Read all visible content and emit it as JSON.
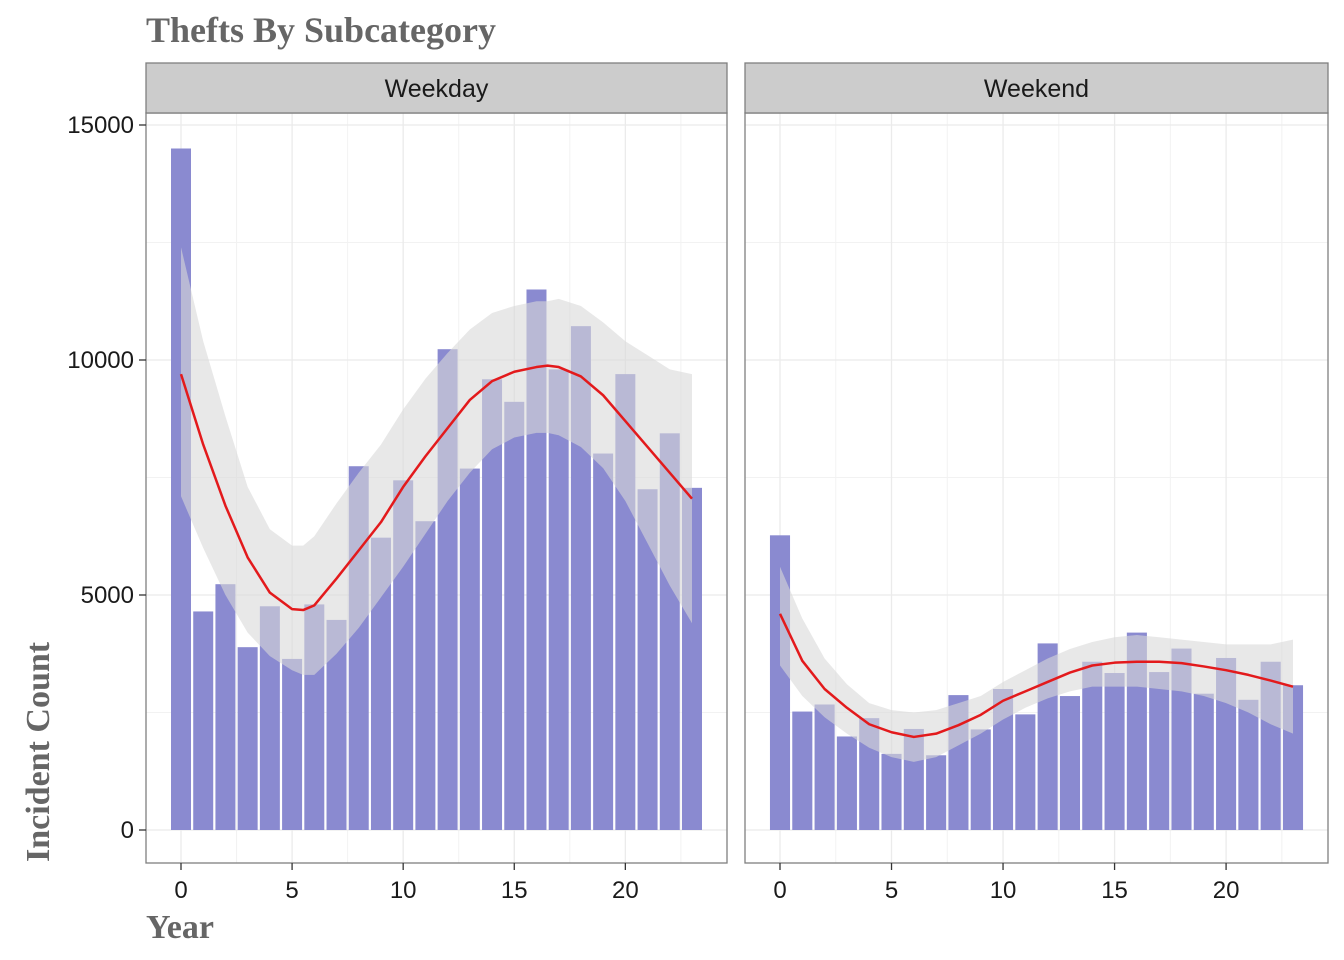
{
  "chart_data": {
    "type": "bar",
    "title": "Thefts By Subcategory",
    "xlabel": "Year",
    "ylabel": "Incident Count",
    "xlim": [
      -0.5,
      23.5
    ],
    "ylim": [
      0,
      15000
    ],
    "x_ticks": [
      0,
      5,
      10,
      15,
      20
    ],
    "y_ticks": [
      0,
      5000,
      10000,
      15000
    ],
    "grid": true,
    "colors": {
      "bar": "#8a8ad0",
      "smooth_line": "#e31a1c",
      "confidence_band": "#d9d9d9",
      "strip": "#cccccc"
    },
    "panels": [
      {
        "label": "Weekday",
        "x": [
          0,
          1,
          2,
          3,
          4,
          5,
          6,
          7,
          8,
          9,
          10,
          11,
          12,
          13,
          14,
          15,
          16,
          17,
          18,
          19,
          20,
          21,
          22,
          23
        ],
        "values": [
          14500,
          4650,
          5230,
          3890,
          4760,
          3640,
          4800,
          4470,
          7740,
          6220,
          7440,
          6570,
          10230,
          7690,
          9590,
          9110,
          11500,
          9800,
          10720,
          8010,
          9700,
          7250,
          8440,
          7280
        ],
        "smooth": {
          "x": [
            0,
            1,
            2,
            3,
            4,
            5,
            5.5,
            6,
            7,
            8,
            9,
            10,
            11,
            12,
            13,
            14,
            15,
            16,
            16.5,
            17,
            18,
            19,
            20,
            21,
            22,
            23
          ],
          "y": [
            9700,
            8200,
            6900,
            5800,
            5050,
            4700,
            4680,
            4780,
            5350,
            5950,
            6550,
            7300,
            7950,
            8550,
            9150,
            9550,
            9750,
            9850,
            9880,
            9850,
            9650,
            9250,
            8700,
            8150,
            7600,
            7050
          ],
          "lower": [
            7100,
            6000,
            5000,
            4200,
            3700,
            3400,
            3300,
            3300,
            3750,
            4300,
            4950,
            5600,
            6300,
            7000,
            7600,
            8100,
            8350,
            8450,
            8450,
            8400,
            8150,
            7700,
            7000,
            6100,
            5200,
            4400
          ],
          "upper": [
            12400,
            10400,
            8800,
            7300,
            6400,
            6050,
            6050,
            6250,
            6950,
            7600,
            8200,
            8950,
            9600,
            10150,
            10650,
            11000,
            11150,
            11250,
            11250,
            11300,
            11150,
            10800,
            10400,
            10100,
            9800,
            9700
          ]
        }
      },
      {
        "label": "Weekend",
        "x": [
          0,
          1,
          2,
          3,
          4,
          5,
          6,
          7,
          8,
          9,
          10,
          11,
          12,
          13,
          14,
          15,
          16,
          17,
          18,
          19,
          20,
          21,
          22,
          23
        ],
        "values": [
          6270,
          2520,
          2670,
          1990,
          2380,
          1620,
          2150,
          1590,
          2870,
          2140,
          3000,
          2460,
          3970,
          2850,
          3580,
          3340,
          4200,
          3360,
          3860,
          2900,
          3660,
          2770,
          3580,
          3080
        ],
        "smooth": {
          "x": [
            0,
            1,
            2,
            3,
            4,
            5,
            6,
            7,
            8,
            9,
            10,
            11,
            12,
            13,
            14,
            15,
            16,
            17,
            18,
            19,
            20,
            21,
            22,
            23
          ],
          "y": [
            4600,
            3600,
            3000,
            2600,
            2250,
            2080,
            1980,
            2050,
            2230,
            2450,
            2750,
            2950,
            3150,
            3350,
            3500,
            3560,
            3580,
            3580,
            3550,
            3480,
            3400,
            3300,
            3180,
            3050
          ],
          "lower": [
            3500,
            2850,
            2400,
            2050,
            1750,
            1550,
            1450,
            1550,
            1800,
            2050,
            2350,
            2600,
            2800,
            2950,
            3050,
            3050,
            3050,
            3000,
            2950,
            2850,
            2700,
            2500,
            2250,
            2050
          ],
          "upper": [
            5600,
            4500,
            3650,
            3100,
            2700,
            2550,
            2500,
            2550,
            2700,
            2850,
            3150,
            3400,
            3650,
            3850,
            4000,
            4100,
            4150,
            4100,
            4050,
            4000,
            3950,
            3950,
            3950,
            4050
          ]
        }
      }
    ]
  }
}
